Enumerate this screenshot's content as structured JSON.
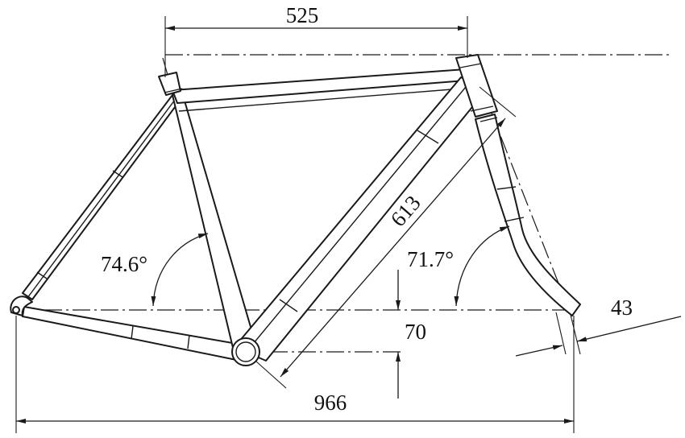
{
  "drawing": {
    "dimensions": {
      "top_tube_length": "525",
      "down_tube_length": "613",
      "seat_angle": "74.6°",
      "head_angle": "71.7°",
      "bb_drop": "70",
      "fork_offset": "43",
      "wheelbase": "966"
    },
    "colors": {
      "line": "#1a1a1a",
      "background": "#ffffff"
    }
  }
}
